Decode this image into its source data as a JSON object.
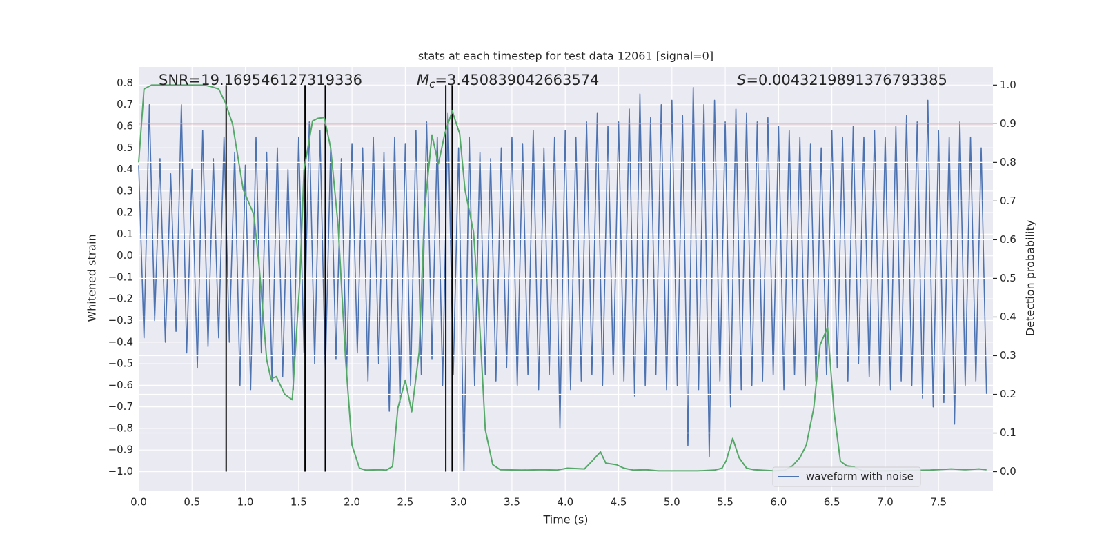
{
  "chart_data": {
    "type": "line",
    "title": "stats at each timestep for test data 12061 [signal=0]",
    "xlabel": "Time (s)",
    "ylabel": "Whitened strain",
    "y2label": "Detection probability",
    "xlim": [
      0,
      8.01
    ],
    "ylim": [
      -1.088,
      0.875
    ],
    "y2lim": [
      -0.049,
      1.047
    ],
    "xticks": [
      {
        "value": 0,
        "label": "0.0"
      },
      0.5,
      {
        "value": 1,
        "label": "1.0"
      },
      1.5,
      {
        "value": 2,
        "label": "2.0"
      },
      2.5,
      {
        "value": 3,
        "label": "3.0"
      },
      3.5,
      {
        "value": 4,
        "label": "4.0"
      },
      4.5,
      {
        "value": 5,
        "label": "5.0"
      },
      5.5,
      {
        "value": 6,
        "label": "6.0"
      },
      6.5,
      {
        "value": 7,
        "label": "7.0"
      },
      7.5
    ],
    "yticks": [
      {
        "value": -1,
        "label": "−1.0"
      },
      {
        "value": -0.9,
        "label": "−0.9"
      },
      {
        "value": -0.8,
        "label": "−0.8"
      },
      {
        "value": -0.7,
        "label": "−0.7"
      },
      {
        "value": -0.6,
        "label": "−0.6"
      },
      {
        "value": -0.5,
        "label": "−0.5"
      },
      {
        "value": -0.4,
        "label": "−0.4"
      },
      {
        "value": -0.3,
        "label": "−0.3"
      },
      {
        "value": -0.2,
        "label": "−0.2"
      },
      {
        "value": -0.1,
        "label": "−0.1"
      },
      {
        "value": 0,
        "label": "0.0"
      },
      0.1,
      0.2,
      0.3,
      0.4,
      0.5,
      0.6,
      0.7,
      0.8
    ],
    "y2ticks": [
      {
        "value": 0,
        "label": "0.0"
      },
      0.1,
      0.2,
      0.3,
      0.4,
      0.5,
      0.6,
      0.7,
      0.8,
      0.9,
      {
        "value": 1,
        "label": "1.0"
      }
    ],
    "grid": true,
    "background": "#eaeaf2",
    "legend_loc": "lower right",
    "annotations": [
      [
        {
          "text": "SNR=19.169546127319336",
          "style": "normal"
        }
      ],
      [
        {
          "text": "M",
          "style": "italic"
        },
        {
          "text": "c",
          "style": "sub"
        },
        {
          "text": "=3.450839042663574",
          "style": "normal"
        }
      ],
      [
        {
          "text": "S",
          "style": "italic"
        },
        {
          "text": "=0.0043219891376793385",
          "style": "normal"
        }
      ]
    ],
    "threshold": {
      "value": 0.9,
      "axis": "y2",
      "color": "#c44e52"
    },
    "vlines": {
      "x": [
        0.82,
        1.56,
        1.75,
        2.88,
        2.94
      ],
      "color": "#000000",
      "ylim_y2": [
        0,
        1
      ]
    },
    "series": [
      {
        "name": "waveform with noise",
        "color": "#4c72b0",
        "x": [
          0,
          0.05,
          0.1,
          0.15,
          0.2,
          0.25,
          0.3,
          0.35,
          0.4,
          0.45,
          0.5,
          0.55,
          0.6,
          0.65,
          0.7,
          0.75,
          0.8,
          0.85,
          0.9,
          0.95,
          1,
          1.05,
          1.1,
          1.15,
          1.2,
          1.25,
          1.3,
          1.35,
          1.4,
          1.45,
          1.5,
          1.55,
          1.6,
          1.65,
          1.7,
          1.75,
          1.8,
          1.85,
          1.9,
          1.95,
          2,
          2.05,
          2.1,
          2.15,
          2.2,
          2.25,
          2.3,
          2.35,
          2.4,
          2.45,
          2.5,
          2.55,
          2.6,
          2.65,
          2.7,
          2.75,
          2.8,
          2.85,
          2.9,
          2.95,
          3,
          3.05,
          3.1,
          3.15,
          3.2,
          3.25,
          3.3,
          3.35,
          3.4,
          3.45,
          3.5,
          3.55,
          3.6,
          3.65,
          3.7,
          3.75,
          3.8,
          3.85,
          3.9,
          3.95,
          4,
          4.05,
          4.1,
          4.15,
          4.2,
          4.25,
          4.3,
          4.35,
          4.4,
          4.45,
          4.5,
          4.55,
          4.6,
          4.65,
          4.7,
          4.75,
          4.8,
          4.85,
          4.9,
          4.95,
          5,
          5.05,
          5.1,
          5.15,
          5.2,
          5.25,
          5.3,
          5.35,
          5.4,
          5.45,
          5.5,
          5.55,
          5.6,
          5.65,
          5.7,
          5.75,
          5.8,
          5.85,
          5.9,
          5.95,
          6,
          6.05,
          6.1,
          6.15,
          6.2,
          6.25,
          6.3,
          6.35,
          6.4,
          6.45,
          6.5,
          6.55,
          6.6,
          6.65,
          6.7,
          6.75,
          6.8,
          6.85,
          6.9,
          6.95,
          7,
          7.05,
          7.1,
          7.15,
          7.2,
          7.25,
          7.3,
          7.35,
          7.4,
          7.45,
          7.5,
          7.55,
          7.6,
          7.65,
          7.7,
          7.75,
          7.8,
          7.85,
          7.9,
          7.95
        ],
        "values": [
          0.42,
          -0.38,
          0.7,
          -0.3,
          0.45,
          -0.4,
          0.38,
          -0.35,
          0.7,
          -0.45,
          0.4,
          -0.52,
          0.58,
          -0.42,
          0.45,
          -0.38,
          0.55,
          -0.4,
          0.48,
          -0.6,
          0.42,
          -0.62,
          0.55,
          -0.45,
          0.48,
          -0.58,
          0.5,
          -0.56,
          0.4,
          -0.62,
          0.55,
          -0.45,
          0.62,
          -0.5,
          0.58,
          -0.55,
          0.5,
          -0.48,
          0.45,
          -0.55,
          0.52,
          -0.45,
          0.5,
          -0.58,
          0.55,
          -0.5,
          0.48,
          -0.72,
          0.55,
          -0.68,
          0.52,
          -0.6,
          0.58,
          -0.55,
          0.62,
          -0.48,
          0.55,
          -0.6,
          0.66,
          -0.55,
          0.5,
          -1.0,
          0.55,
          -0.6,
          0.48,
          -0.55,
          0.45,
          -0.58,
          0.5,
          -0.52,
          0.55,
          -0.6,
          0.52,
          -0.55,
          0.58,
          -0.62,
          0.5,
          -0.55,
          0.55,
          -0.8,
          0.58,
          -0.62,
          0.55,
          -0.58,
          0.62,
          -0.55,
          0.66,
          -0.6,
          0.6,
          -0.55,
          0.62,
          -0.58,
          0.68,
          -0.65,
          0.75,
          -0.6,
          0.64,
          -0.55,
          0.7,
          -0.62,
          0.72,
          -0.6,
          0.65,
          -0.88,
          0.78,
          -0.62,
          0.7,
          -0.93,
          0.72,
          -0.58,
          0.62,
          -0.7,
          0.68,
          -0.62,
          0.66,
          -0.6,
          0.62,
          -0.58,
          0.64,
          -0.55,
          0.6,
          -0.62,
          0.58,
          -0.55,
          0.55,
          -0.6,
          0.52,
          -0.58,
          0.5,
          -0.55,
          0.58,
          -0.52,
          0.55,
          -0.58,
          0.6,
          -0.5,
          0.55,
          -0.56,
          0.58,
          -0.6,
          0.55,
          -0.62,
          0.6,
          -0.58,
          0.65,
          -0.6,
          0.62,
          -0.66,
          0.72,
          -0.7,
          0.58,
          -0.68,
          0.55,
          -0.78,
          0.62,
          -0.6,
          0.55,
          -0.58,
          0.5,
          -0.64
        ]
      },
      {
        "color": "#55a868",
        "axis": "y2",
        "x": [
          0,
          0.05,
          0.12,
          0.61,
          0.68,
          0.75,
          0.81,
          0.88,
          0.98,
          1.08,
          1.13,
          1.2,
          1.24,
          1.29,
          1.37,
          1.44,
          1.51,
          1.55,
          1.63,
          1.68,
          1.74,
          1.8,
          1.87,
          1.94,
          2.0,
          2.07,
          2.13,
          2.27,
          2.32,
          2.38,
          2.43,
          2.5,
          2.56,
          2.63,
          2.68,
          2.75,
          2.81,
          2.87,
          2.94,
          3.01,
          3.06,
          3.14,
          3.19,
          3.25,
          3.32,
          3.39,
          3.59,
          3.78,
          3.92,
          4.02,
          4.18,
          4.25,
          4.33,
          4.38,
          4.48,
          4.55,
          4.64,
          4.76,
          4.87,
          5.24,
          5.4,
          5.47,
          5.51,
          5.57,
          5.63,
          5.7,
          5.77,
          5.96,
          6.06,
          6.13,
          6.2,
          6.26,
          6.33,
          6.39,
          6.46,
          6.52,
          6.58,
          6.64,
          6.7,
          6.79,
          7.02,
          7.42,
          7.62,
          7.75,
          7.88,
          7.95
        ],
        "values": [
          0.8,
          0.99,
          1.0,
          1.0,
          0.996,
          0.99,
          0.956,
          0.9,
          0.73,
          0.665,
          0.53,
          0.29,
          0.24,
          0.246,
          0.2,
          0.186,
          0.49,
          0.78,
          0.907,
          0.914,
          0.916,
          0.838,
          0.637,
          0.29,
          0.069,
          0.009,
          0.004,
          0.005,
          0.004,
          0.013,
          0.164,
          0.237,
          0.155,
          0.31,
          0.674,
          0.871,
          0.796,
          0.874,
          0.933,
          0.874,
          0.729,
          0.62,
          0.419,
          0.109,
          0.018,
          0.005,
          0.004,
          0.005,
          0.004,
          0.009,
          0.007,
          0.027,
          0.051,
          0.022,
          0.018,
          0.009,
          0.004,
          0.005,
          0.002,
          0.002,
          0.004,
          0.009,
          0.029,
          0.086,
          0.036,
          0.009,
          0.005,
          0.002,
          0.004,
          0.015,
          0.036,
          0.069,
          0.164,
          0.328,
          0.373,
          0.155,
          0.027,
          0.015,
          0.013,
          0.002,
          0.002,
          0.004,
          0.007,
          0.005,
          0.007,
          0.005
        ]
      }
    ]
  }
}
